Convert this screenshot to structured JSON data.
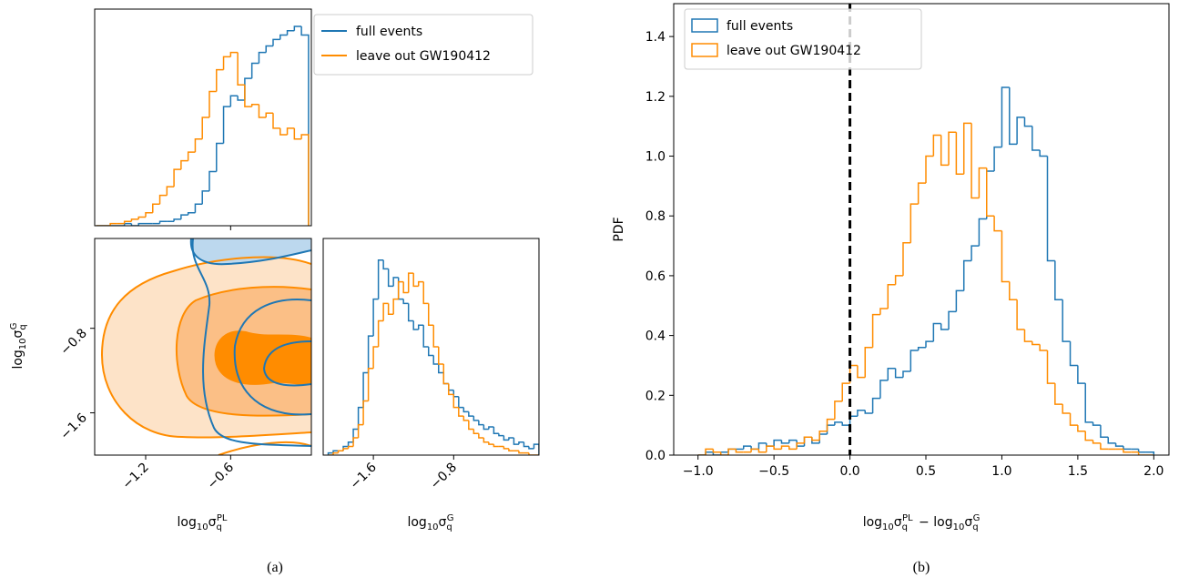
{
  "chart_data": [
    {
      "type": "histogram",
      "bins": [
        -1.55,
        -1.5,
        -1.45,
        -1.4,
        -1.35,
        -1.3,
        -1.25,
        -1.2,
        -1.15,
        -1.1,
        -1.05,
        -1.0,
        -0.95,
        -0.9,
        -0.85,
        -0.8,
        -0.75,
        -0.7,
        -0.65,
        -0.6,
        -0.55,
        -0.5,
        -0.45,
        -0.4,
        -0.35,
        -0.3,
        -0.25,
        -0.2,
        -0.15,
        -0.1,
        -0.05
      ],
      "series": [
        {
          "name": "full events",
          "color": "#1f77b4",
          "values": [
            0,
            0,
            0,
            0,
            0.01,
            0,
            0.01,
            0.01,
            0.01,
            0.02,
            0.02,
            0.03,
            0.05,
            0.06,
            0.1,
            0.16,
            0.25,
            0.38,
            0.55,
            0.6,
            0.58,
            0.68,
            0.75,
            0.8,
            0.83,
            0.86,
            0.88,
            0.9,
            0.92,
            0.88
          ]
        },
        {
          "name": "leave out GW190412",
          "color": "#ff8c00",
          "values": [
            0,
            0,
            0.01,
            0.01,
            0.02,
            0.03,
            0.04,
            0.06,
            0.1,
            0.14,
            0.18,
            0.26,
            0.3,
            0.34,
            0.4,
            0.5,
            0.62,
            0.72,
            0.78,
            0.8,
            0.65,
            0.55,
            0.56,
            0.5,
            0.52,
            0.45,
            0.42,
            0.45,
            0.4,
            0.42
          ]
        }
      ],
      "xlim": [
        -1.56,
        -0.03
      ],
      "ylim": [
        0,
        1
      ],
      "xticks": [
        {
          "value": -0.6
        }
      ],
      "legend": "outside upper right",
      "legend_marker": "line"
    },
    {
      "type": "contour",
      "xlim": [
        -1.56,
        -0.03
      ],
      "ylim": [
        -2.0,
        0.05
      ],
      "xticks": [
        {
          "value": -1.2,
          "label": "−1.2"
        },
        {
          "value": -0.6,
          "label": "−0.6"
        }
      ],
      "yticks": [
        {
          "value": -1.6,
          "label": "−1.6"
        },
        {
          "value": -0.8,
          "label": "−0.8"
        }
      ],
      "tick_rotation": 45,
      "xlabel": [
        "log",
        "10",
        "σ",
        "q",
        "PL"
      ],
      "ylabel": [
        "log",
        "10",
        "σ",
        "q",
        "G"
      ],
      "caption": "(a)"
    },
    {
      "type": "histogram",
      "bins": [
        -2.05,
        -2.0,
        -1.95,
        -1.9,
        -1.85,
        -1.8,
        -1.75,
        -1.7,
        -1.65,
        -1.6,
        -1.55,
        -1.5,
        -1.45,
        -1.4,
        -1.35,
        -1.3,
        -1.25,
        -1.2,
        -1.15,
        -1.1,
        -1.05,
        -1.0,
        -0.95,
        -0.9,
        -0.85,
        -0.8,
        -0.75,
        -0.7,
        -0.65,
        -0.6,
        -0.55,
        -0.5,
        -0.45,
        -0.4,
        -0.35,
        -0.3,
        -0.25,
        -0.2,
        -0.15,
        -0.1,
        -0.05,
        0.0,
        0.05
      ],
      "series": [
        {
          "color": "#1f77b4",
          "values": [
            0.01,
            0.02,
            0.02,
            0.04,
            0.06,
            0.12,
            0.22,
            0.38,
            0.55,
            0.72,
            0.9,
            0.86,
            0.78,
            0.82,
            0.72,
            0.7,
            0.62,
            0.58,
            0.6,
            0.5,
            0.46,
            0.42,
            0.38,
            0.33,
            0.3,
            0.27,
            0.22,
            0.2,
            0.18,
            0.16,
            0.14,
            0.12,
            0.13,
            0.1,
            0.09,
            0.07,
            0.08,
            0.05,
            0.06,
            0.04,
            0.03,
            0.05
          ]
        },
        {
          "color": "#ff8c00",
          "values": [
            0,
            0.01,
            0.02,
            0.03,
            0.04,
            0.08,
            0.14,
            0.25,
            0.4,
            0.5,
            0.62,
            0.7,
            0.65,
            0.72,
            0.8,
            0.75,
            0.84,
            0.78,
            0.8,
            0.7,
            0.6,
            0.5,
            0.42,
            0.33,
            0.28,
            0.22,
            0.18,
            0.16,
            0.12,
            0.1,
            0.08,
            0.06,
            0.05,
            0.04,
            0.04,
            0.03,
            0.02,
            0.02,
            0.01,
            0.01,
            0,
            0
          ]
        }
      ],
      "xlim": [
        -2.1,
        0.05
      ],
      "ylim": [
        0,
        1
      ],
      "xticks": [
        {
          "value": -1.6,
          "label": "−1.6"
        },
        {
          "value": -0.8,
          "label": "−0.8"
        }
      ],
      "tick_rotation": 45,
      "xlabel": [
        "log",
        "10",
        "σ",
        "q",
        "G"
      ]
    },
    {
      "type": "histogram",
      "bins": [
        -1.0,
        -0.95,
        -0.9,
        -0.85,
        -0.8,
        -0.75,
        -0.7,
        -0.65,
        -0.6,
        -0.55,
        -0.5,
        -0.45,
        -0.4,
        -0.35,
        -0.3,
        -0.25,
        -0.2,
        -0.15,
        -0.1,
        -0.05,
        0.0,
        0.05,
        0.1,
        0.15,
        0.2,
        0.25,
        0.3,
        0.35,
        0.4,
        0.45,
        0.5,
        0.55,
        0.6,
        0.65,
        0.7,
        0.75,
        0.8,
        0.85,
        0.9,
        0.95,
        1.0,
        1.05,
        1.1,
        1.15,
        1.2,
        1.25,
        1.3,
        1.35,
        1.4,
        1.45,
        1.5,
        1.55,
        1.6,
        1.65,
        1.7,
        1.75,
        1.8,
        1.85,
        1.9,
        1.95,
        2.0
      ],
      "series": [
        {
          "name": "full events",
          "color": "#1f77b4",
          "values": [
            0,
            0.01,
            0,
            0.01,
            0.02,
            0.02,
            0.03,
            0.02,
            0.04,
            0.03,
            0.05,
            0.04,
            0.05,
            0.03,
            0.06,
            0.04,
            0.07,
            0.1,
            0.11,
            0.1,
            0.13,
            0.15,
            0.14,
            0.19,
            0.25,
            0.29,
            0.26,
            0.28,
            0.35,
            0.36,
            0.38,
            0.44,
            0.42,
            0.48,
            0.55,
            0.65,
            0.7,
            0.79,
            0.95,
            1.03,
            1.23,
            1.04,
            1.13,
            1.1,
            1.02,
            1.0,
            0.65,
            0.52,
            0.38,
            0.3,
            0.24,
            0.11,
            0.1,
            0.06,
            0.04,
            0.03,
            0.02,
            0.02,
            0.01,
            0.01
          ]
        },
        {
          "name": "leave out GW190412",
          "color": "#ff8c00",
          "values": [
            0,
            0.02,
            0.01,
            0,
            0.02,
            0.01,
            0.01,
            0.02,
            0.01,
            0.03,
            0.02,
            0.03,
            0.02,
            0.04,
            0.06,
            0.05,
            0.08,
            0.12,
            0.18,
            0.24,
            0.3,
            0.26,
            0.36,
            0.47,
            0.49,
            0.57,
            0.6,
            0.71,
            0.84,
            0.91,
            1.0,
            1.07,
            0.97,
            1.08,
            0.94,
            1.11,
            0.86,
            0.96,
            0.8,
            0.75,
            0.58,
            0.52,
            0.42,
            0.38,
            0.37,
            0.35,
            0.24,
            0.17,
            0.14,
            0.1,
            0.08,
            0.05,
            0.04,
            0.02,
            0.02,
            0.02,
            0.01,
            0.01,
            0,
            0
          ]
        }
      ],
      "xlim": [
        -1.16,
        2.1
      ],
      "ylim": [
        0,
        1.51
      ],
      "xticks": [
        {
          "value": -1.0,
          "label": "−1.0"
        },
        {
          "value": -0.5,
          "label": "−0.5"
        },
        {
          "value": 0,
          "label": "0.0"
        },
        0.5,
        {
          "value": 1,
          "label": "1.0"
        },
        1.5,
        {
          "value": 2,
          "label": "2.0"
        }
      ],
      "yticks": [
        {
          "value": 0,
          "label": "0.0"
        },
        0.2,
        0.4,
        0.6,
        0.8,
        {
          "value": 1,
          "label": "1.0"
        },
        1.2,
        1.4
      ],
      "vline": 0,
      "xlabel": [
        "log",
        "10",
        "σ",
        "q",
        "PL",
        " − log",
        "10",
        "σ",
        "q",
        "G"
      ],
      "ylabel": "PDF",
      "legend": "upper left",
      "legend_marker": "patch",
      "caption": "(b)"
    }
  ]
}
